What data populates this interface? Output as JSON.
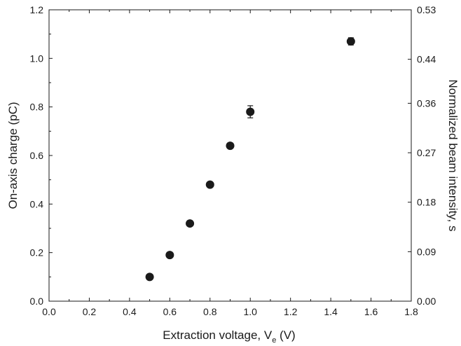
{
  "chart_data": {
    "type": "scatter",
    "title": "",
    "xlabel": {
      "main": "Extraction voltage, V",
      "subscript": "e",
      "unit": " (V)"
    },
    "ylabel": "On-axis charge (pC)",
    "ylabel_right": "Normalized beam intensity, s",
    "xlim": [
      0.0,
      1.8
    ],
    "ylim": [
      0.0,
      1.2
    ],
    "ylim_right": [
      0.0,
      0.53
    ],
    "x_ticks": [
      "0.0",
      "0.2",
      "0.4",
      "0.6",
      "0.8",
      "1.0",
      "1.2",
      "1.4",
      "1.6",
      "1.8"
    ],
    "y_ticks": [
      "0.0",
      "0.2",
      "0.4",
      "0.6",
      "0.8",
      "1.0",
      "1.2"
    ],
    "y_ticks_right": [
      {
        "value": 0.0,
        "label": "0.00"
      },
      {
        "value": 0.09,
        "label": "0.09"
      },
      {
        "value": 0.18,
        "label": "0.18"
      },
      {
        "value": 0.27,
        "label": "0.27"
      },
      {
        "value": 0.36,
        "label": "0.36"
      },
      {
        "value": 0.44,
        "label": "0.44"
      },
      {
        "value": 0.53,
        "label": "0.53"
      }
    ],
    "grid": false,
    "series": [
      {
        "x": [
          0.5,
          0.6,
          0.7,
          0.8,
          0.9,
          1.0,
          1.5
        ],
        "y": [
          0.1,
          0.19,
          0.32,
          0.48,
          0.64,
          0.78,
          1.07
        ],
        "yerr": [
          0.006,
          0.008,
          0.008,
          0.01,
          0.01,
          0.025,
          0.015
        ],
        "color": "#1a1a1a"
      }
    ]
  }
}
